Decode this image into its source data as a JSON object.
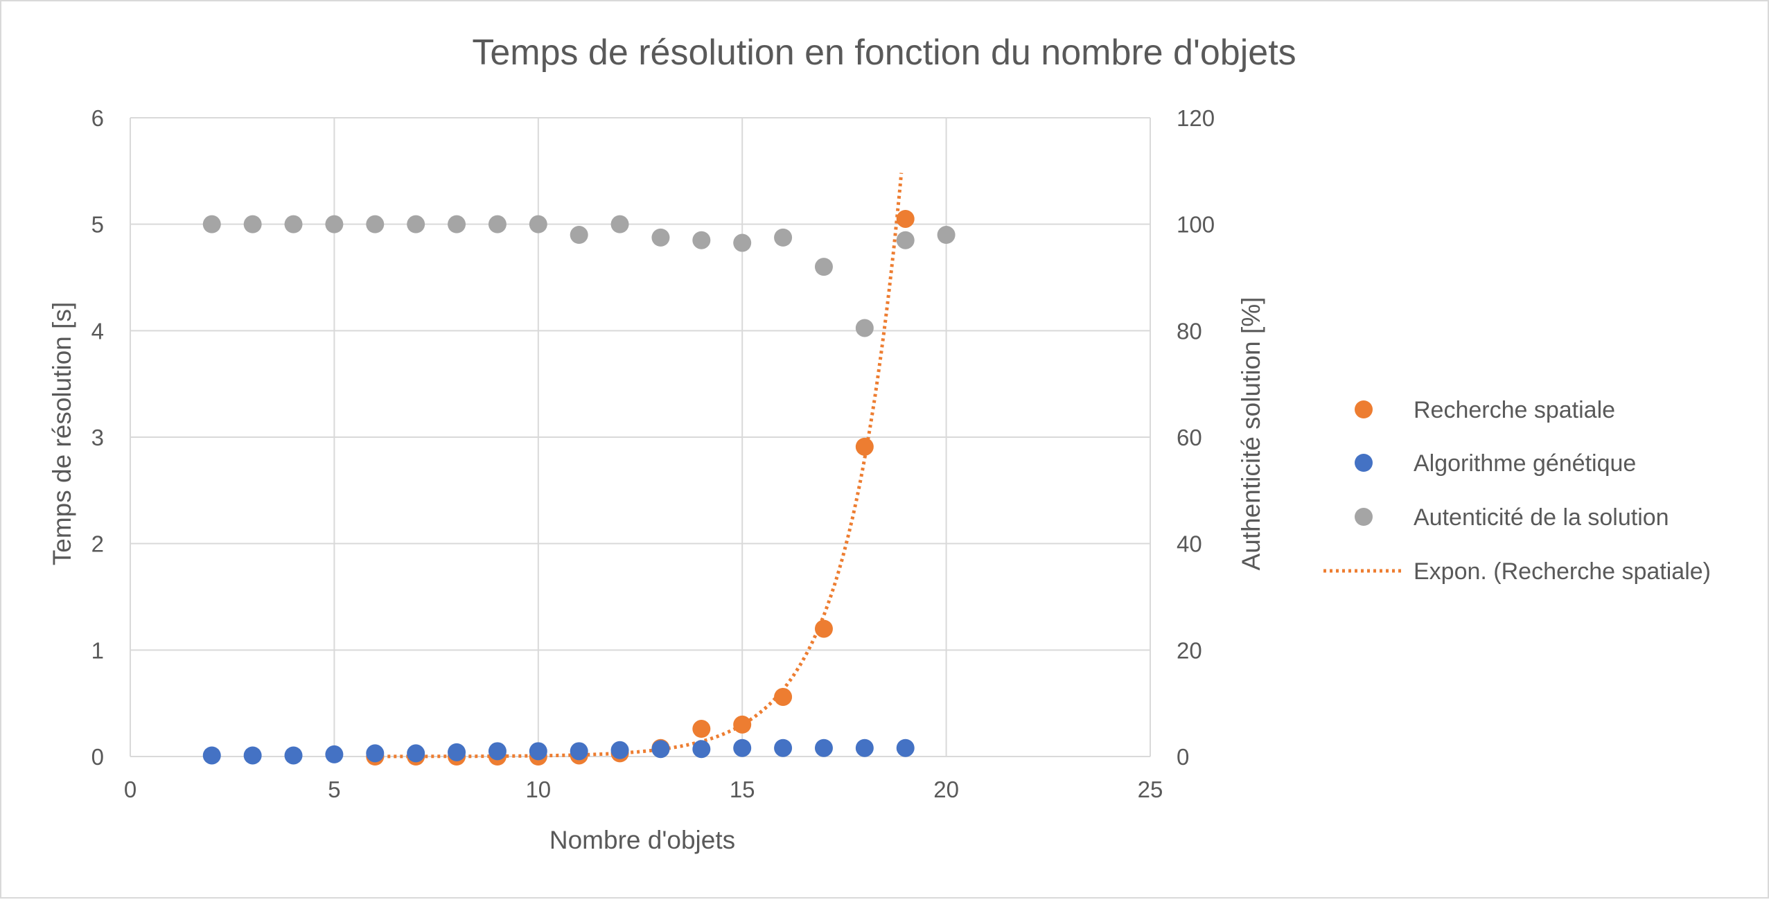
{
  "chart_data": {
    "type": "scatter",
    "title": "Temps de résolution en fonction du nombre d'objets",
    "xlabel": "Nombre d'objets",
    "ylabel": "Temps de résolution [s]",
    "y2label": "Authenticité solution [%]",
    "xlim": [
      0,
      25
    ],
    "ylim": [
      0,
      6
    ],
    "y2lim": [
      0,
      120
    ],
    "x_ticks": [
      "0",
      "5",
      "10",
      "15",
      "20",
      "25"
    ],
    "y_ticks": [
      "0",
      "1",
      "2",
      "3",
      "4",
      "5",
      "6"
    ],
    "y2_ticks": [
      "0",
      "20",
      "40",
      "60",
      "80",
      "100",
      "120"
    ],
    "grid": true,
    "legend_position": "right",
    "series": [
      {
        "name": "Recherche spatiale",
        "axis": "left",
        "color": "#ed7d31",
        "x": [
          6,
          7,
          8,
          9,
          10,
          11,
          12,
          13,
          14,
          15,
          16,
          17,
          18,
          19
        ],
        "y": [
          0.0,
          0.0,
          0.0,
          0.0,
          0.0,
          0.01,
          0.03,
          0.08,
          0.26,
          0.3,
          0.56,
          1.2,
          2.91,
          5.05
        ]
      },
      {
        "name": "Algorithme génétique",
        "axis": "left",
        "color": "#4472c4",
        "x": [
          2,
          3,
          4,
          5,
          6,
          7,
          8,
          9,
          10,
          11,
          12,
          13,
          14,
          15,
          16,
          17,
          18,
          19
        ],
        "y": [
          0.01,
          0.01,
          0.01,
          0.02,
          0.03,
          0.03,
          0.04,
          0.05,
          0.05,
          0.05,
          0.06,
          0.07,
          0.07,
          0.08,
          0.08,
          0.08,
          0.08,
          0.08
        ]
      },
      {
        "name": "Autenticité de la solution",
        "axis": "right",
        "color": "#a5a5a5",
        "x": [
          2,
          3,
          4,
          5,
          6,
          7,
          8,
          9,
          10,
          11,
          12,
          13,
          14,
          15,
          16,
          17,
          18,
          19,
          20
        ],
        "y": [
          100,
          100,
          100,
          100,
          100,
          100,
          100,
          100,
          100,
          98,
          100,
          97.5,
          97,
          96.5,
          97.5,
          92,
          80.5,
          97,
          98
        ]
      }
    ],
    "trendline": {
      "name": "Expon. (Recherche spatiale)",
      "type": "exponential",
      "of_series": "Recherche spatiale",
      "color": "#ed7d31",
      "x_range": [
        6,
        19
      ]
    }
  }
}
